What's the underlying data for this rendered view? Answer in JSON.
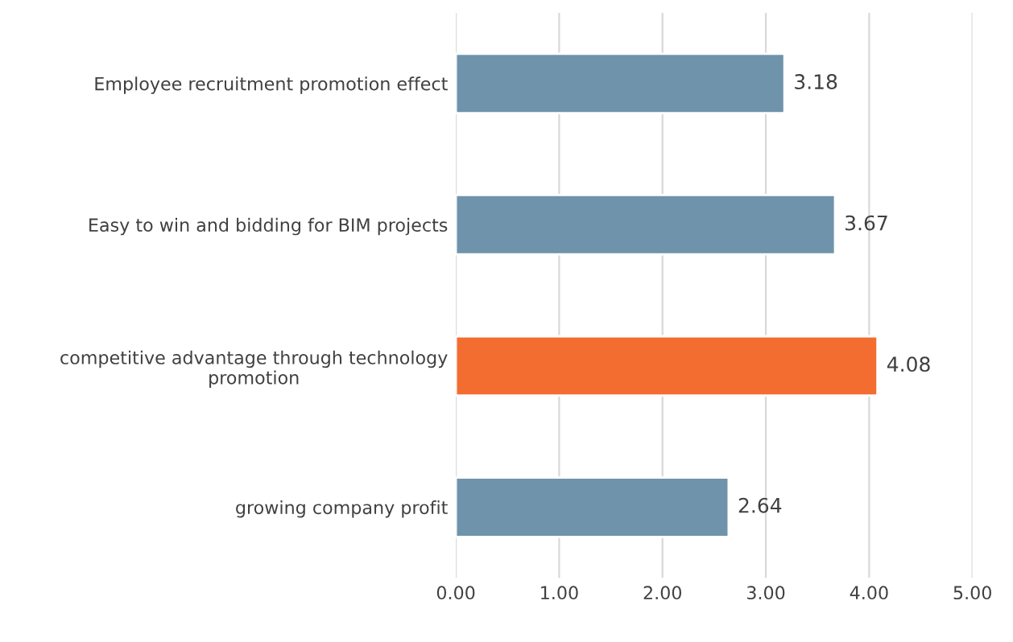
{
  "chart_data": {
    "type": "bar",
    "orientation": "horizontal",
    "categories": [
      "Employee recruitment promotion effect",
      "Easy to win and bidding for BIM projects",
      "competitive advantage through technology\npromotion",
      "growing company profit"
    ],
    "values": [
      3.18,
      3.67,
      4.08,
      2.64
    ],
    "colors": [
      "#6f93ab",
      "#6f93ab",
      "#f36c30",
      "#6f93ab"
    ],
    "value_labels": [
      "3.18",
      "3.67",
      "4.08",
      "2.64"
    ],
    "xlim": [
      0,
      5
    ],
    "xticks": [
      {
        "value": 0,
        "label": "0.00"
      },
      {
        "value": 1,
        "label": "1.00"
      },
      {
        "value": 2,
        "label": "2.00"
      },
      {
        "value": 3,
        "label": "3.00"
      },
      {
        "value": 4,
        "label": "4.00"
      },
      {
        "value": 5,
        "label": "5.00"
      }
    ],
    "grid": "x"
  }
}
